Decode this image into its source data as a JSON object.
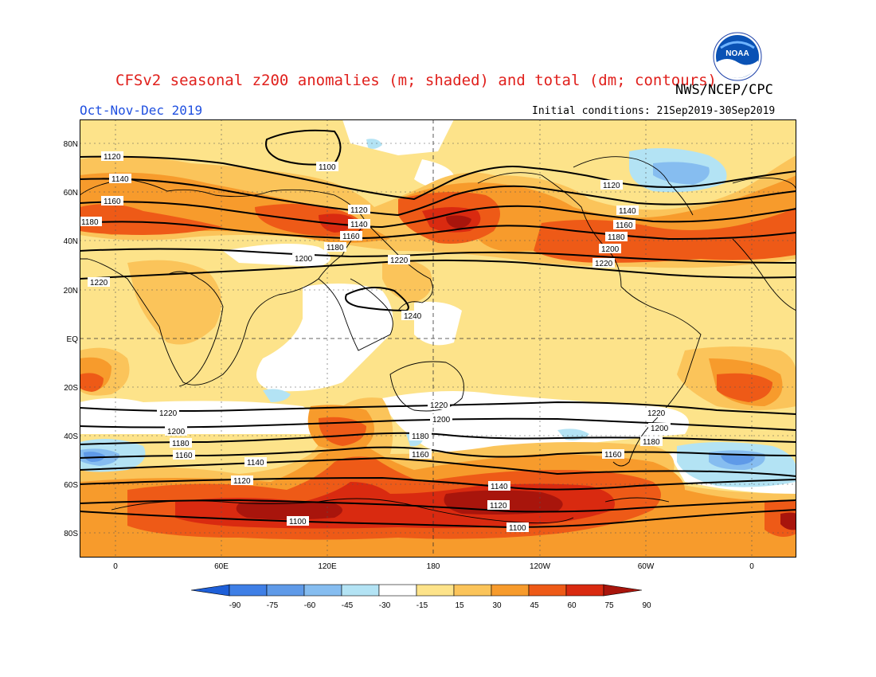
{
  "header": {
    "title": "CFSv2 seasonal z200 anomalies (m; shaded) and total (dm; contours)",
    "agency": "NWS/NCEP/CPC",
    "season": "Oct-Nov-Dec 2019",
    "initial_conditions": "Initial conditions: 21Sep2019-30Sep2019",
    "logo_text": "NOAA"
  },
  "map": {
    "lat_labels": [
      "80N",
      "60N",
      "40N",
      "20N",
      "EQ",
      "20S",
      "40S",
      "60S",
      "80S"
    ],
    "lon_labels": [
      "0",
      "60E",
      "120E",
      "180",
      "120W",
      "60W",
      "0"
    ],
    "contour_labels": [
      "1100",
      "1120",
      "1140",
      "1160",
      "1180",
      "1200",
      "1220",
      "1240"
    ]
  },
  "colorbar": {
    "ticks": [
      "-90",
      "-75",
      "-60",
      "-45",
      "-30",
      "-15",
      "15",
      "30",
      "45",
      "60",
      "75",
      "90"
    ],
    "colors": [
      "#1e5fd8",
      "#3f7fe6",
      "#5f9ae8",
      "#86bdf0",
      "#b3e3f4",
      "#ffffff",
      "#fde38a",
      "#fbc45a",
      "#f79b2c",
      "#ee5a17",
      "#d92a10",
      "#a8150c"
    ]
  }
}
